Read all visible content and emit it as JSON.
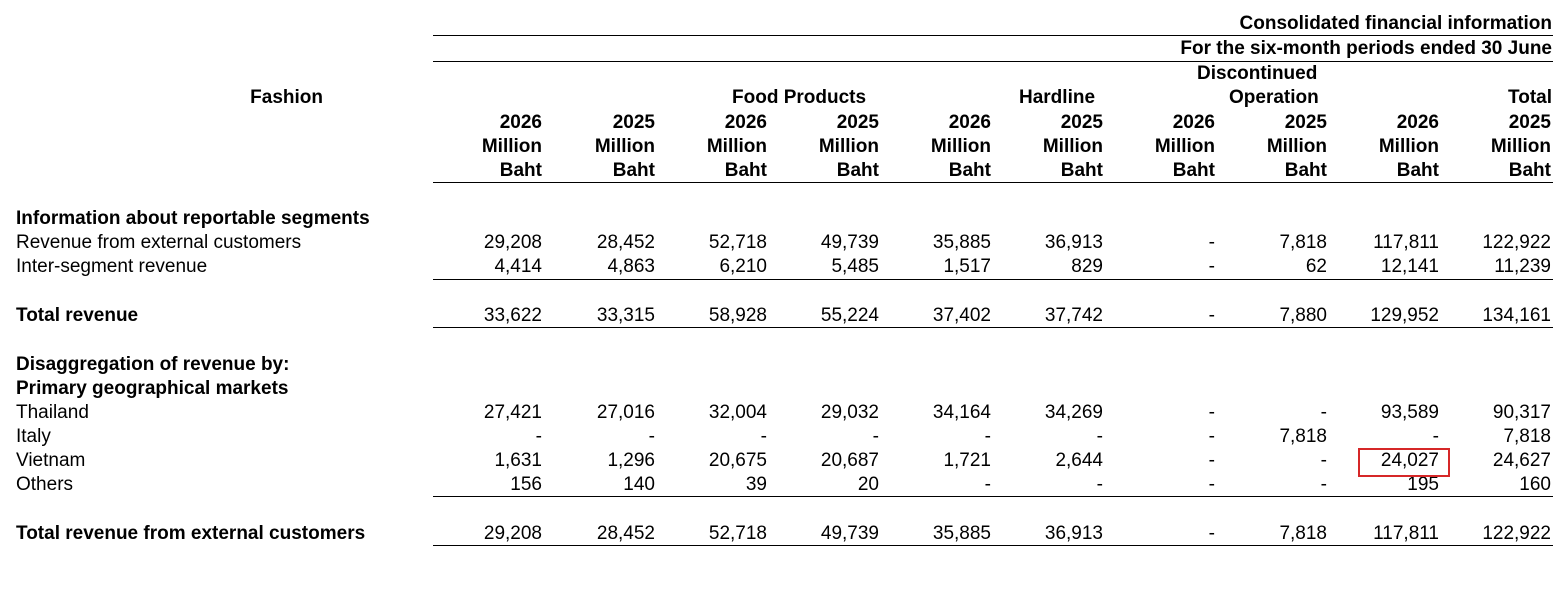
{
  "header": {
    "title": "Consolidated financial information",
    "period": "For the six-month periods ended 30 June",
    "segments": {
      "fashion": "Fashion",
      "food": "Food Products",
      "hardline": "Hardline",
      "discontinued_line1": "Discontinued",
      "discontinued_line2": "Operation",
      "total": "Total"
    },
    "years": [
      "2026",
      "2025",
      "2026",
      "2025",
      "2026",
      "2025",
      "2026",
      "2025",
      "2026",
      "2025"
    ],
    "unit1": "Million",
    "unit2": "Baht"
  },
  "sections": {
    "reportable": "Information about reportable segments",
    "disagg1": "Disaggregation of revenue by:",
    "disagg2": "Primary geographical markets"
  },
  "rows": [
    {
      "label": "Revenue from external customers",
      "values": [
        "29,208",
        "28,452",
        "52,718",
        "49,739",
        "35,885",
        "36,913",
        "-",
        "7,818",
        "117,811",
        "122,922"
      ]
    },
    {
      "label": "Inter-segment revenue",
      "values": [
        "4,414",
        "4,863",
        "6,210",
        "5,485",
        "1,517",
        "829",
        "-",
        "62",
        "12,141",
        "11,239"
      ]
    },
    {
      "label": "Total revenue",
      "values": [
        "33,622",
        "33,315",
        "58,928",
        "55,224",
        "37,402",
        "37,742",
        "-",
        "7,880",
        "129,952",
        "134,161"
      ]
    },
    {
      "label": "Thailand",
      "values": [
        "27,421",
        "27,016",
        "32,004",
        "29,032",
        "34,164",
        "34,269",
        "-",
        "-",
        "93,589",
        "90,317"
      ]
    },
    {
      "label": "Italy",
      "values": [
        "-",
        "-",
        "-",
        "-",
        "-",
        "-",
        "-",
        "7,818",
        "-",
        "7,818"
      ]
    },
    {
      "label": "Vietnam",
      "values": [
        "1,631",
        "1,296",
        "20,675",
        "20,687",
        "1,721",
        "2,644",
        "-",
        "-",
        "24,027",
        "24,627"
      ]
    },
    {
      "label": "Others",
      "values": [
        "156",
        "140",
        "39",
        "20",
        "-",
        "-",
        "-",
        "-",
        "195",
        "160"
      ]
    },
    {
      "label": "Total revenue from external customers",
      "values": [
        "29,208",
        "28,452",
        "52,718",
        "49,739",
        "35,885",
        "36,913",
        "-",
        "7,818",
        "117,811",
        "122,922"
      ]
    }
  ],
  "highlight": {
    "row": "Vietnam",
    "column": "2026 Total",
    "value": "24,027",
    "color": "#d62728"
  }
}
